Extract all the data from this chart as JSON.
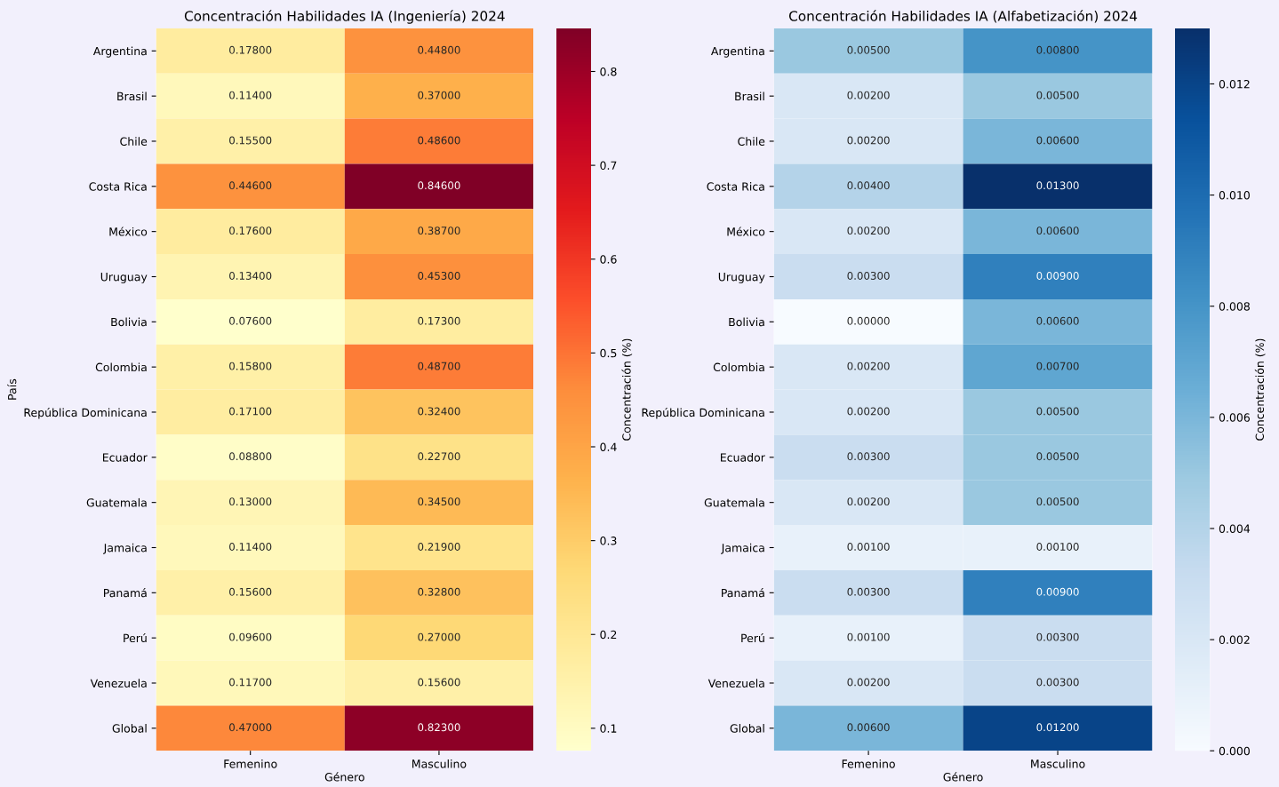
{
  "chart_data": [
    {
      "type": "heatmap",
      "title": "Concentración Habilidades IA (Ingeniería) 2024",
      "xlabel": "Género",
      "ylabel": "País",
      "clabel": "Concentración (%)",
      "categories": [
        "Femenino",
        "Masculino"
      ],
      "y_categories": [
        "Argentina",
        "Brasil",
        "Chile",
        "Costa Rica",
        "México",
        "Uruguay",
        "Bolivia",
        "Colombia",
        "República Dominicana",
        "Ecuador",
        "Guatemala",
        "Jamaica",
        "Panamá",
        "Perú",
        "Venezuela",
        "Global"
      ],
      "cells": [
        [
          0.178,
          0.448
        ],
        [
          0.114,
          0.37
        ],
        [
          0.155,
          0.486
        ],
        [
          0.446,
          0.846
        ],
        [
          0.176,
          0.387
        ],
        [
          0.134,
          0.453
        ],
        [
          0.076,
          0.173
        ],
        [
          0.158,
          0.487
        ],
        [
          0.171,
          0.324
        ],
        [
          0.088,
          0.227
        ],
        [
          0.13,
          0.345
        ],
        [
          0.114,
          0.219
        ],
        [
          0.156,
          0.328
        ],
        [
          0.096,
          0.27
        ],
        [
          0.117,
          0.156
        ],
        [
          0.47,
          0.823
        ]
      ],
      "cell_labels": [
        [
          "0.17800",
          "0.44800"
        ],
        [
          "0.11400",
          "0.37000"
        ],
        [
          "0.15500",
          "0.48600"
        ],
        [
          "0.44600",
          "0.84600"
        ],
        [
          "0.17600",
          "0.38700"
        ],
        [
          "0.13400",
          "0.45300"
        ],
        [
          "0.07600",
          "0.17300"
        ],
        [
          "0.15800",
          "0.48700"
        ],
        [
          "0.17100",
          "0.32400"
        ],
        [
          "0.08800",
          "0.22700"
        ],
        [
          "0.13000",
          "0.34500"
        ],
        [
          "0.11400",
          "0.21900"
        ],
        [
          "0.15600",
          "0.32800"
        ],
        [
          "0.09600",
          "0.27000"
        ],
        [
          "0.11700",
          "0.15600"
        ],
        [
          "0.47000",
          "0.82300"
        ]
      ],
      "clim": [
        0.076,
        0.846
      ],
      "cticks": [
        0.1,
        0.2,
        0.3,
        0.4,
        0.5,
        0.6,
        0.7,
        0.8
      ],
      "colors": [
        "#ffffcc",
        "#ffeda0",
        "#fed976",
        "#feb24c",
        "#fd8d3c",
        "#fc4e2a",
        "#e31a1c",
        "#bd0026",
        "#800026"
      ]
    },
    {
      "type": "heatmap",
      "title": "Concentración Habilidades IA (Alfabetización) 2024",
      "xlabel": "Género",
      "clabel": "Concentración (%)",
      "categories": [
        "Femenino",
        "Masculino"
      ],
      "y_categories": [
        "Argentina",
        "Brasil",
        "Chile",
        "Costa Rica",
        "México",
        "Uruguay",
        "Bolivia",
        "Colombia",
        "República Dominicana",
        "Ecuador",
        "Guatemala",
        "Jamaica",
        "Panamá",
        "Perú",
        "Venezuela",
        "Global"
      ],
      "cells": [
        [
          0.005,
          0.008
        ],
        [
          0.002,
          0.005
        ],
        [
          0.002,
          0.006
        ],
        [
          0.004,
          0.013
        ],
        [
          0.002,
          0.006
        ],
        [
          0.003,
          0.009
        ],
        [
          0.0,
          0.006
        ],
        [
          0.002,
          0.007
        ],
        [
          0.002,
          0.005
        ],
        [
          0.003,
          0.005
        ],
        [
          0.002,
          0.005
        ],
        [
          0.001,
          0.001
        ],
        [
          0.003,
          0.009
        ],
        [
          0.001,
          0.003
        ],
        [
          0.002,
          0.003
        ],
        [
          0.006,
          0.012
        ]
      ],
      "cell_labels": [
        [
          "0.00500",
          "0.00800"
        ],
        [
          "0.00200",
          "0.00500"
        ],
        [
          "0.00200",
          "0.00600"
        ],
        [
          "0.00400",
          "0.01300"
        ],
        [
          "0.00200",
          "0.00600"
        ],
        [
          "0.00300",
          "0.00900"
        ],
        [
          "0.00000",
          "0.00600"
        ],
        [
          "0.00200",
          "0.00700"
        ],
        [
          "0.00200",
          "0.00500"
        ],
        [
          "0.00300",
          "0.00500"
        ],
        [
          "0.00200",
          "0.00500"
        ],
        [
          "0.00100",
          "0.00100"
        ],
        [
          "0.00300",
          "0.00900"
        ],
        [
          "0.00100",
          "0.00300"
        ],
        [
          "0.00200",
          "0.00300"
        ],
        [
          "0.00600",
          "0.01200"
        ]
      ],
      "clim": [
        0.0,
        0.013
      ],
      "cticks": [
        {
          "value": 0,
          "label": "0.000"
        },
        0.002,
        0.004,
        0.006,
        0.008,
        {
          "value": 0.01,
          "label": "0.010"
        },
        0.012
      ],
      "colors": [
        "#f7fbff",
        "#deebf7",
        "#c6dbef",
        "#9ecae1",
        "#6baed6",
        "#4292c6",
        "#2171b5",
        "#08519c",
        "#08306b"
      ]
    }
  ]
}
